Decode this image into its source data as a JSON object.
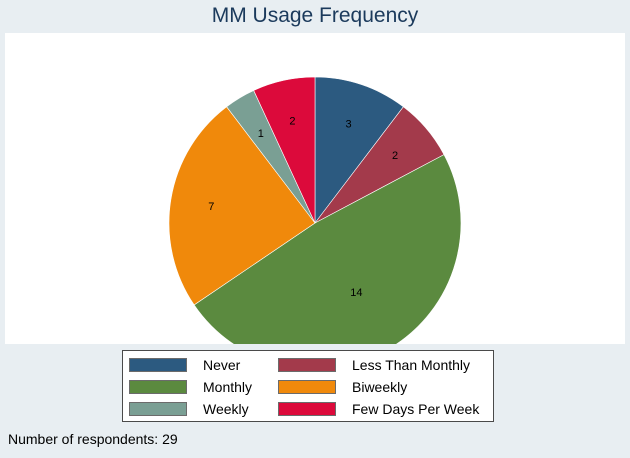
{
  "chart_data": {
    "type": "pie",
    "title": "MM Usage Frequency",
    "categories": [
      "Never",
      "Less Than Monthly",
      "Monthly",
      "Biweekly",
      "Weekly",
      "Few Days Per Week"
    ],
    "values": [
      3,
      2,
      14,
      7,
      1,
      2
    ],
    "colors": [
      "#2c5a80",
      "#a33a4b",
      "#5b8a3f",
      "#f0890b",
      "#7a9f94",
      "#dc0a3b"
    ],
    "labels": [
      "3",
      "2",
      "14",
      "7",
      "1",
      "2"
    ],
    "legend_position": "bottom",
    "legend_layout": "2-columns"
  },
  "footnote": "Number of respondents: 29"
}
